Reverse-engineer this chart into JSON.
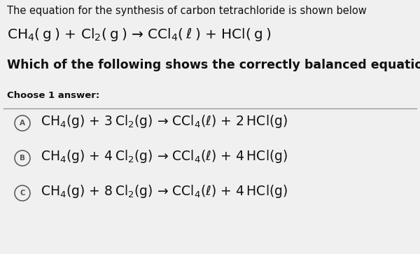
{
  "bg_color": "#f0f0f0",
  "title_text": "The equation for the synthesis of carbon tetrachloride is shown below",
  "unbalanced_eq": "CH$_4$( g ) + Cl$_2$( g ) → CCl$_4$( ℓ ) + HCl( g )",
  "question": "Which of the following shows the correctly balanced equation?",
  "choose": "Choose 1 answer:",
  "options": [
    {
      "label": "A",
      "eq": "CH$_4$(g) + 3 Cl$_2$(g) → CCl$_4$(ℓ) + 2 HCl(g)"
    },
    {
      "label": "B",
      "eq": "CH$_4$(g) + 4 Cl$_2$(g) → CCl$_4$(ℓ) + 4 HCl(g)"
    },
    {
      "label": "C",
      "eq": "CH$_4$(g) + 8 Cl$_2$(g) → CCl$_4$(ℓ) + 4 HCl(g)"
    }
  ],
  "title_fontsize": 10.5,
  "eq_fontsize": 14.5,
  "question_fontsize": 12.5,
  "choose_fontsize": 9.5,
  "option_fontsize": 13.5,
  "line_color": "#999999",
  "text_color": "#111111",
  "circle_color": "#555555"
}
